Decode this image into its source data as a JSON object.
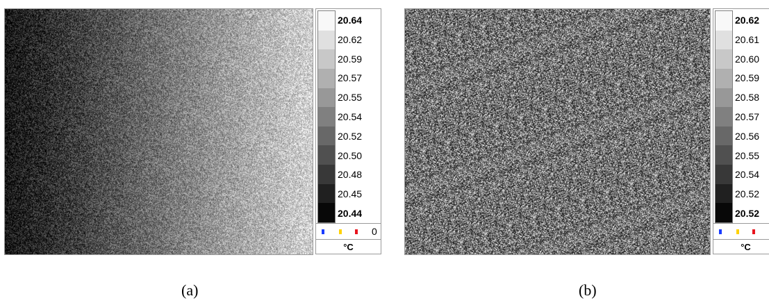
{
  "panels": [
    {
      "id": "a",
      "caption": "(a)",
      "image_pattern": "horizontal gradient dark-to-light with noise",
      "scale": {
        "labels": [
          "20.64",
          "20.62",
          "20.59",
          "20.57",
          "20.55",
          "20.54",
          "20.52",
          "20.50",
          "20.48",
          "20.45",
          "20.44"
        ],
        "bold_first_last": true,
        "marker_colors": [
          "#1a3cff",
          "#ffd200",
          "#e8141e"
        ],
        "marker_value": "0",
        "unit": "°C"
      }
    },
    {
      "id": "b",
      "caption": "(b)",
      "image_pattern": "uniform speckle noise",
      "scale": {
        "labels": [
          "20.62",
          "20.61",
          "20.60",
          "20.59",
          "20.58",
          "20.57",
          "20.56",
          "20.55",
          "20.54",
          "20.52",
          "20.52"
        ],
        "bold_first_last": true,
        "marker_colors": [
          "#1a3cff",
          "#ffd200",
          "#e8141e"
        ],
        "marker_value": "0",
        "unit": "°C"
      }
    }
  ]
}
